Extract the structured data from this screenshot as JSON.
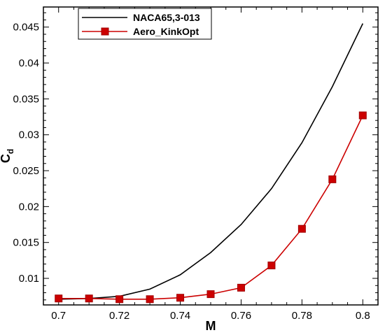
{
  "chart_data": {
    "type": "line",
    "xlabel": "M",
    "ylabel_main": "C",
    "ylabel_sub": "d",
    "xlim": [
      0.695,
      0.805
    ],
    "ylim": [
      0.0063,
      0.0478
    ],
    "xticks": [
      0.7,
      0.72,
      0.74,
      0.76,
      0.78,
      0.8
    ],
    "xtick_labels": [
      "0.7",
      "0.72",
      "0.74",
      "0.76",
      "0.78",
      "0.8"
    ],
    "yticks": [
      0.01,
      0.015,
      0.02,
      0.025,
      0.03,
      0.035,
      0.04,
      0.045
    ],
    "ytick_labels": [
      "0.01",
      "0.015",
      "0.02",
      "0.025",
      "0.03",
      "0.035",
      "0.04",
      "0.045"
    ],
    "legend_position": "top-left",
    "grid": false,
    "series": [
      {
        "name": "NACA65,3-013",
        "color": "#000000",
        "marker": "none",
        "x": [
          0.7,
          0.71,
          0.72,
          0.73,
          0.74,
          0.75,
          0.76,
          0.77,
          0.78,
          0.79,
          0.8
        ],
        "y": [
          0.0071,
          0.0072,
          0.0075,
          0.0085,
          0.0105,
          0.0136,
          0.0175,
          0.0225,
          0.0289,
          0.0367,
          0.0455
        ]
      },
      {
        "name": "Aero_KinkOpt",
        "color": "#cc0000",
        "marker": "square",
        "x": [
          0.7,
          0.71,
          0.72,
          0.73,
          0.74,
          0.75,
          0.76,
          0.77,
          0.78,
          0.79,
          0.8
        ],
        "y": [
          0.0072,
          0.0072,
          0.0071,
          0.0071,
          0.0073,
          0.0078,
          0.0087,
          0.0118,
          0.0169,
          0.0238,
          0.0327
        ]
      }
    ]
  }
}
